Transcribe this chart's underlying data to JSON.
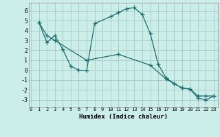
{
  "xlabel": "Humidex (Indice chaleur)",
  "background_color": "#cceee8",
  "grid_color": "#aacccc",
  "line_color": "#1a6b6b",
  "line1_x": [
    1,
    2,
    3,
    4,
    5,
    6,
    7,
    8,
    10,
    11,
    12,
    13,
    14,
    15,
    16,
    17,
    18,
    19,
    20,
    21,
    22,
    23
  ],
  "line1_y": [
    4.8,
    2.8,
    3.5,
    2.1,
    0.4,
    0.0,
    -0.05,
    4.7,
    5.4,
    5.8,
    6.2,
    6.3,
    5.6,
    3.7,
    0.6,
    -0.8,
    -1.35,
    -1.8,
    -1.9,
    -2.8,
    -3.0,
    -2.6
  ],
  "line2_x": [
    1,
    2,
    3,
    7,
    11,
    15,
    17,
    18,
    19,
    20,
    21,
    22,
    23
  ],
  "line2_y": [
    4.8,
    3.5,
    3.0,
    1.0,
    1.6,
    0.5,
    -0.9,
    -1.35,
    -1.8,
    -1.9,
    -2.6,
    -2.6,
    -2.6
  ],
  "xlim": [
    -0.3,
    23.5
  ],
  "ylim": [
    -3.7,
    6.8
  ],
  "yticks": [
    -3,
    -2,
    -1,
    0,
    1,
    2,
    3,
    4,
    5,
    6
  ],
  "xticks": [
    0,
    1,
    2,
    3,
    4,
    5,
    6,
    7,
    8,
    9,
    10,
    11,
    12,
    13,
    14,
    15,
    16,
    17,
    18,
    19,
    20,
    21,
    22,
    23
  ]
}
